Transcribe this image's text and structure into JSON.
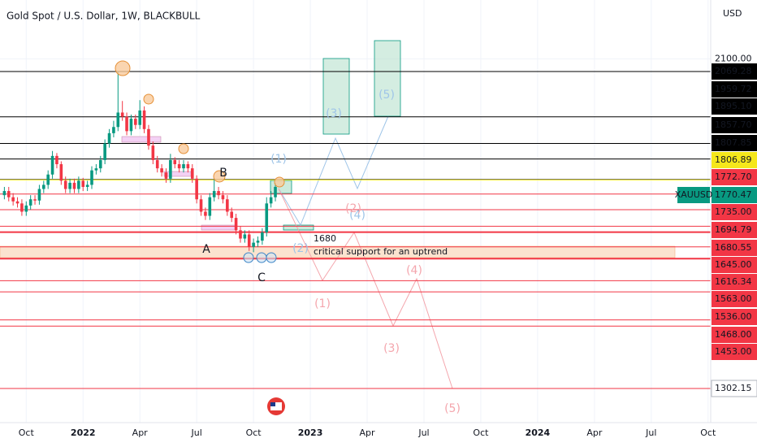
{
  "chart_data": {
    "type": "candlestick",
    "title": "Gold Spot / U.S. Dollar, 1W, BLACKBULL",
    "currency": "USD",
    "symbol": "XAUUSD",
    "up_color": "#089981",
    "down_color": "#f23645",
    "xlim": [
      -1,
      161.6
    ],
    "ylim": [
      1219.5,
      2242.4
    ],
    "xticks": [
      {
        "value": 5,
        "label": "Oct"
      },
      {
        "value": 18,
        "label": "2022"
      },
      {
        "value": 31,
        "label": "Apr"
      },
      {
        "value": 44,
        "label": "Jul"
      },
      {
        "value": 57,
        "label": "Oct"
      },
      {
        "value": 70,
        "label": "2023"
      },
      {
        "value": 83,
        "label": "Apr"
      },
      {
        "value": 96,
        "label": "Jul"
      },
      {
        "value": 109,
        "label": "Oct"
      },
      {
        "value": 122,
        "label": "2024"
      },
      {
        "value": 135,
        "label": "Apr"
      },
      {
        "value": 148,
        "label": "Jul"
      },
      {
        "value": 161,
        "label": "Oct"
      }
    ],
    "yticks": [
      {
        "value": 2100,
        "label": "2100.00"
      }
    ],
    "open": [
      1770,
      1780,
      1765,
      1755,
      1750,
      1730,
      1745,
      1760,
      1757,
      1785,
      1795,
      1820,
      1865,
      1845,
      1805,
      1785,
      1800,
      1785,
      1805,
      1790,
      1795,
      1830,
      1835,
      1855,
      1895,
      1920,
      1935,
      1970,
      1960,
      1925,
      1955,
      1940,
      1975,
      1930,
      1890,
      1855,
      1835,
      1825,
      1810,
      1855,
      1845,
      1835,
      1845,
      1835,
      1810,
      1760,
      1730,
      1720,
      1765,
      1780,
      1770,
      1760,
      1730,
      1715,
      1685,
      1665,
      1675,
      1645,
      1655,
      1660,
      1680,
      1750,
      1765
    ],
    "high": [
      1790,
      1790,
      1775,
      1765,
      1760,
      1755,
      1770,
      1770,
      1795,
      1805,
      1830,
      1877,
      1872,
      1852,
      1815,
      1810,
      1810,
      1815,
      1812,
      1805,
      1840,
      1845,
      1865,
      1905,
      1930,
      1950,
      2069,
      1998,
      1970,
      1965,
      1965,
      2000,
      1985,
      1940,
      1900,
      1865,
      1845,
      1835,
      1870,
      1862,
      1855,
      1855,
      1852,
      1845,
      1818,
      1770,
      1740,
      1775,
      1808,
      1790,
      1780,
      1770,
      1740,
      1725,
      1695,
      1685,
      1685,
      1665,
      1670,
      1690,
      1765,
      1780,
      1800
    ],
    "low": [
      1760,
      1755,
      1745,
      1740,
      1720,
      1720,
      1735,
      1747,
      1747,
      1775,
      1785,
      1810,
      1835,
      1795,
      1775,
      1775,
      1775,
      1775,
      1780,
      1780,
      1785,
      1820,
      1825,
      1845,
      1885,
      1910,
      1925,
      1950,
      1915,
      1915,
      1930,
      1930,
      1920,
      1880,
      1845,
      1825,
      1815,
      1800,
      1800,
      1835,
      1825,
      1825,
      1825,
      1800,
      1750,
      1720,
      1710,
      1710,
      1755,
      1760,
      1750,
      1720,
      1705,
      1675,
      1655,
      1655,
      1635,
      1632,
      1645,
      1650,
      1670,
      1740,
      1755
    ],
    "close": [
      1780,
      1765,
      1755,
      1750,
      1730,
      1745,
      1760,
      1757,
      1785,
      1795,
      1820,
      1865,
      1845,
      1805,
      1785,
      1800,
      1785,
      1805,
      1790,
      1795,
      1830,
      1835,
      1855,
      1895,
      1920,
      1935,
      1970,
      1960,
      1925,
      1955,
      1940,
      1975,
      1930,
      1890,
      1855,
      1835,
      1825,
      1810,
      1855,
      1845,
      1835,
      1845,
      1835,
      1810,
      1760,
      1730,
      1720,
      1765,
      1780,
      1770,
      1760,
      1730,
      1715,
      1685,
      1665,
      1675,
      1645,
      1655,
      1660,
      1680,
      1750,
      1765,
      1790
    ],
    "price_lines": [
      {
        "value": 2069.28,
        "color": "#000000"
      },
      {
        "value": 1959.72,
        "color": "#000000"
      },
      {
        "value": 1895.1,
        "label": "1895.10",
        "color": "#000000"
      },
      {
        "value": 1857.7,
        "label": "1857.70",
        "color": "#000000"
      },
      {
        "value": 1807.85,
        "color": "#000000"
      },
      {
        "value": 1806.89,
        "color": "#f5e71b"
      },
      {
        "value": 1772.7,
        "label": "1772.70",
        "color": "#f23645"
      },
      {
        "value": 1735,
        "label": "1735.00",
        "color": "#f23645"
      },
      {
        "value": 1694.79,
        "color": "#f23645"
      },
      {
        "value": 1680.55,
        "color": "#f23645"
      },
      {
        "value": 1645,
        "label": "1645.00",
        "color": "#f23645"
      },
      {
        "value": 1616.34,
        "color": "#f23645"
      },
      {
        "value": 1563,
        "label": "1563.00",
        "color": "#f23645"
      },
      {
        "value": 1536,
        "label": "1536.00",
        "color": "#f23645"
      },
      {
        "value": 1468,
        "label": "1468.00",
        "color": "#f23645"
      },
      {
        "value": 1453,
        "label": "1453.00",
        "color": "#f23645"
      },
      {
        "value": 1302.15,
        "color": "#f23645"
      }
    ],
    "last_price": 1770.47,
    "last_color": "#089981",
    "points": [
      "A",
      "B",
      "C"
    ],
    "support_level": 1680,
    "support_note": "critical support for an uptrend",
    "waves_bull": [
      "(1)",
      "(2)",
      "(3)",
      "(4)",
      "(5)"
    ],
    "waves_bear": [
      "(1)",
      "(2)",
      "(3)",
      "(4)",
      "(5)"
    ]
  }
}
